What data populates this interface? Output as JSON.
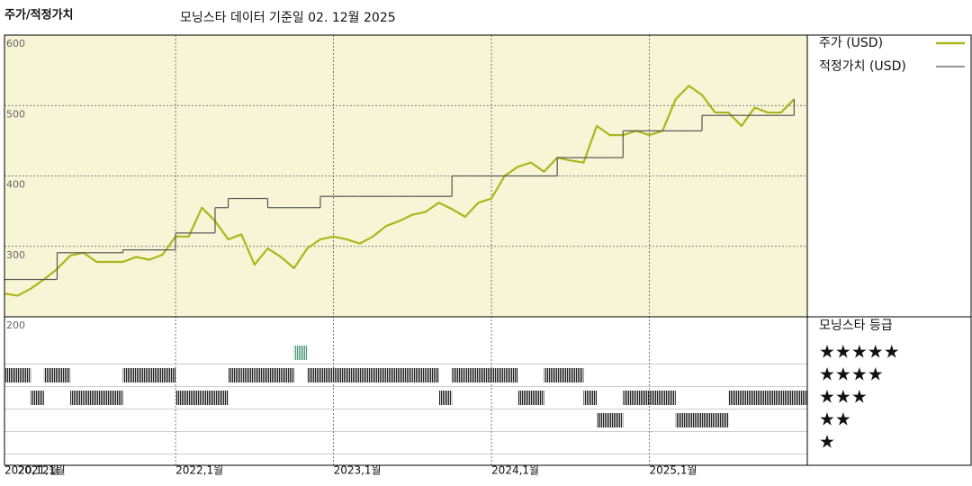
{
  "chart_data": [
    {
      "type": "line",
      "title": "주가/적정가치",
      "subtitle": "모닝스타 데이터 기준일 02. 12월 2025",
      "x": [
        "2020-12",
        "2021-01",
        "2021-02",
        "2021-03",
        "2021-04",
        "2021-05",
        "2021-06",
        "2021-07",
        "2021-08",
        "2021-09",
        "2021-10",
        "2021-11",
        "2021-12",
        "2022-01",
        "2022-02",
        "2022-03",
        "2022-04",
        "2022-05",
        "2022-06",
        "2022-07",
        "2022-08",
        "2022-09",
        "2022-10",
        "2022-11",
        "2022-12",
        "2023-01",
        "2023-02",
        "2023-03",
        "2023-04",
        "2023-05",
        "2023-06",
        "2023-07",
        "2023-08",
        "2023-09",
        "2023-10",
        "2023-11",
        "2023-12",
        "2024-01",
        "2024-02",
        "2024-03",
        "2024-04",
        "2024-05",
        "2024-06",
        "2024-07",
        "2024-08",
        "2024-09",
        "2024-10",
        "2024-11",
        "2024-12",
        "2025-01",
        "2025-02",
        "2025-03",
        "2025-04",
        "2025-05",
        "2025-06",
        "2025-07",
        "2025-08",
        "2025-09",
        "2025-10",
        "2025-11",
        "2025-12"
      ],
      "series": [
        {
          "name": "주가 (USD)",
          "color": "#a9b71c",
          "values": [
            233,
            230,
            240,
            253,
            268,
            287,
            291,
            278,
            278,
            278,
            285,
            281,
            288,
            314,
            314,
            355,
            336,
            310,
            317,
            274,
            297,
            285,
            269,
            297,
            310,
            314,
            310,
            304,
            314,
            329,
            336,
            345,
            349,
            362,
            353,
            342,
            362,
            368,
            400,
            413,
            419,
            406,
            426,
            422,
            419,
            471,
            458,
            458,
            464,
            458,
            464,
            509,
            528,
            515,
            490,
            490,
            471,
            497,
            490,
            490,
            509
          ]
        },
        {
          "name": "적정가치 (USD)",
          "color": "#555555",
          "step": true,
          "values": [
            253,
            253,
            253,
            253,
            291,
            291,
            291,
            291,
            291,
            295,
            295,
            295,
            295,
            319,
            319,
            319,
            355,
            368,
            368,
            368,
            355,
            355,
            355,
            355,
            371,
            371,
            371,
            371,
            371,
            371,
            371,
            371,
            371,
            371,
            400,
            400,
            400,
            400,
            400,
            400,
            400,
            400,
            426,
            426,
            426,
            426,
            426,
            464,
            464,
            464,
            464,
            464,
            464,
            486,
            486,
            486,
            486,
            486,
            486,
            486,
            509
          ]
        }
      ],
      "xlim": [
        "2020-12",
        "2026-01"
      ],
      "xticks": [
        {
          "value": "2020-12",
          "label": "2020,12월"
        },
        {
          "value": "2021-01",
          "label": "2021,1월"
        },
        {
          "value": "2022-01",
          "label": "2022,1월"
        },
        {
          "value": "2023-01",
          "label": "2023,1월"
        },
        {
          "value": "2024-01",
          "label": "2024,1월"
        },
        {
          "value": "2025-01",
          "label": "2025,1월"
        }
      ],
      "ylim": [
        200,
        600
      ],
      "yticks": [
        200,
        300,
        400,
        500,
        600
      ],
      "grid": true,
      "background": "#f8f4d6"
    },
    {
      "type": "rating",
      "title": "모닝스타 등급",
      "x": [
        "2020-12",
        "2021-01",
        "2021-02",
        "2021-03",
        "2021-04",
        "2021-05",
        "2021-06",
        "2021-07",
        "2021-08",
        "2021-09",
        "2021-10",
        "2021-11",
        "2021-12",
        "2022-01",
        "2022-02",
        "2022-03",
        "2022-04",
        "2022-05",
        "2022-06",
        "2022-07",
        "2022-08",
        "2022-09",
        "2022-10",
        "2022-11",
        "2022-12",
        "2023-01",
        "2023-02",
        "2023-03",
        "2023-04",
        "2023-05",
        "2023-06",
        "2023-07",
        "2023-08",
        "2023-09",
        "2023-10",
        "2023-11",
        "2023-12",
        "2024-01",
        "2024-02",
        "2024-03",
        "2024-04",
        "2024-05",
        "2024-06",
        "2024-07",
        "2024-08",
        "2024-09",
        "2024-10",
        "2024-11",
        "2024-12",
        "2025-01",
        "2025-02",
        "2025-03",
        "2025-04",
        "2025-05",
        "2025-06",
        "2025-07",
        "2025-08",
        "2025-09",
        "2025-10",
        "2025-11",
        "2025-12"
      ],
      "values": [
        4,
        4,
        3,
        4,
        4,
        3,
        3,
        3,
        3,
        4,
        4,
        4,
        4,
        3,
        3,
        3,
        3,
        4,
        4,
        4,
        4,
        4,
        5,
        4,
        4,
        4,
        4,
        4,
        4,
        4,
        4,
        4,
        4,
        3,
        4,
        4,
        4,
        4,
        4,
        3,
        3,
        4,
        4,
        4,
        3,
        2,
        2,
        3,
        3,
        3,
        3,
        2,
        2,
        2,
        2,
        3,
        3,
        3,
        3,
        3,
        3
      ],
      "color": "#222222",
      "top_color": "#4e9a7a",
      "ylim": [
        0,
        6.6
      ],
      "yticks": [
        {
          "value": 5,
          "label": "★★★★★"
        },
        {
          "value": 4,
          "label": "★★★★"
        },
        {
          "value": 3,
          "label": "★★★"
        },
        {
          "value": 2,
          "label": "★★"
        },
        {
          "value": 1,
          "label": "★"
        }
      ]
    }
  ]
}
